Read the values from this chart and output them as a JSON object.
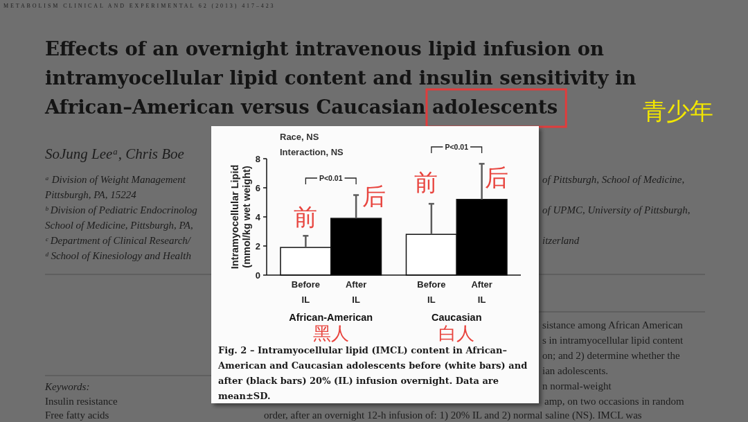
{
  "chart_data": {
    "type": "bar",
    "title": "Effects of an overnight intravenous lipid infusion on intramyocellular lipid content and insulin sensitivity in African–American versus Caucasian adolescents",
    "ylabel": "Intramyocellular Lipid (mmol/kg wet weight)",
    "categories": [
      "African-American",
      "Caucasian"
    ],
    "series": [
      {
        "name": "Before IL",
        "color": "#ffffff",
        "values": [
          1.9,
          2.8
        ],
        "errors": [
          [
            1.9,
            2.7
          ],
          [
            2.8,
            4.9
          ]
        ]
      },
      {
        "name": "After IL",
        "color": "#000000",
        "values": [
          3.9,
          5.2
        ],
        "errors": [
          [
            3.9,
            5.5
          ],
          [
            5.2,
            7.65
          ]
        ]
      }
    ],
    "ylim": [
      0,
      8
    ],
    "yticks": [
      0,
      2,
      4,
      6,
      8
    ],
    "annotations": [
      "Race, NS",
      "Interaction, NS",
      "P<0.01",
      "P<0.01",
      "前",
      "后",
      "前",
      "后",
      "黑人",
      "白人",
      "青少年",
      "Fig. 2 – Intramyocellular lipid (IMCL) content in African–American and Caucasian adolescents before (white bars) and after (black bars) 20% (IL) infusion overnight. Data are mean±SD.",
      "METABOLISM CLINICAL AND EXPERIMENTAL 62 (2013) 417–423",
      "SoJung Leeᵃ, Chris Boe",
      "ᵃ Division of Weight Management",
      "Pittsburgh, PA, 15224",
      "ᵇ Division of Pediatric Endocrinolog",
      "School of Medicine, Pittsburgh, PA,",
      "ᶜ Department of Clinical Research/",
      "ᵈ School of Kinesiology and Health",
      "of Pittsburgh, School of Medicine,",
      "of UPMC, University of Pittsburgh,",
      "itzerland",
      "Keywords:",
      "Insulin resistance",
      "Free fatty acids",
      "sistance among African American",
      "s in intramyocellular lipid content",
      "on; and 2) determine whether the",
      "ian adolescents.",
      "n normal-weight",
      "amp, on two occasions in random",
      "order, after an overnight 12-h infusion of: 1) 20% IL and 2) normal saline (NS). IMCL was"
    ]
  }
}
